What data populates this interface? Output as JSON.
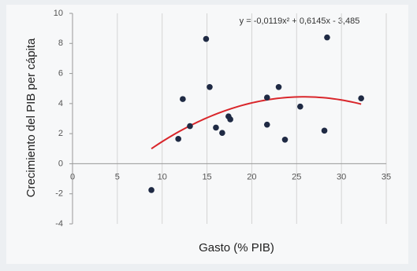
{
  "chart_data": {
    "type": "scatter",
    "x_label": "Gasto (% PIB)",
    "y_label": "Crecimiento del PIB per cápita",
    "x": [
      8.8,
      11.8,
      12.3,
      13.1,
      14.9,
      15.3,
      16.0,
      16.7,
      17.4,
      17.6,
      21.7,
      21.7,
      23.0,
      23.7,
      25.4,
      28.1,
      28.4,
      32.2
    ],
    "values": [
      -1.75,
      1.65,
      4.3,
      2.5,
      8.3,
      5.1,
      2.4,
      2.05,
      3.15,
      2.95,
      4.4,
      2.6,
      5.1,
      1.6,
      3.8,
      2.2,
      8.4,
      4.35
    ],
    "color": "#1f2a44",
    "xlim": [
      0,
      35
    ],
    "xticks": [
      0,
      5,
      10,
      15,
      20,
      25,
      30,
      35
    ],
    "ylim": [
      -4,
      10
    ],
    "yticks": [
      -4,
      -2,
      0,
      2,
      4,
      6,
      8,
      10
    ],
    "grid": true,
    "trendline": {
      "label": "y = -0,0119x² + 0,6145x - 3,485",
      "coefficients": [
        -0.0119,
        0.6145,
        -3.485
      ],
      "x_range": [
        8.8,
        32.2
      ],
      "color": "#d9262b"
    }
  }
}
